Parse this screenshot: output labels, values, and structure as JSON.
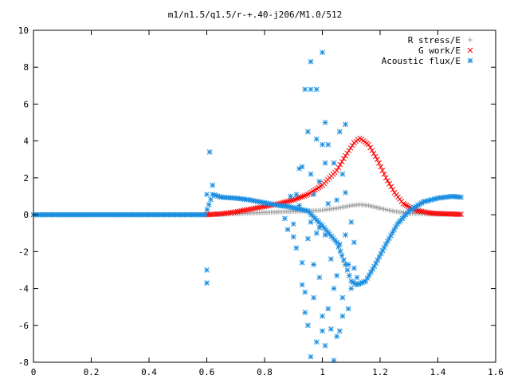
{
  "chart_data": {
    "type": "scatter",
    "title": "m1/n1.5/q1.5/r-+.40-j206/M1.0/512",
    "xlabel": "",
    "ylabel": "",
    "xlim": [
      0,
      1.6
    ],
    "ylim": [
      -8,
      10
    ],
    "x_ticks": [
      "0",
      "0.2",
      "0.4",
      "0.6",
      "0.8",
      "1",
      "1.2",
      "1.4",
      "1.6"
    ],
    "y_ticks": [
      "-8",
      "-6",
      "-4",
      "-2",
      "0",
      "2",
      "4",
      "6",
      "8",
      "10"
    ],
    "legend_position": "top-right",
    "grid": false,
    "series": [
      {
        "name": "R stress/E",
        "marker": "+",
        "color": "#a0a0a0",
        "sampling": "dense",
        "points": [
          [
            0.6,
            0
          ],
          [
            0.7,
            0.05
          ],
          [
            0.8,
            0.12
          ],
          [
            0.9,
            0.18
          ],
          [
            0.95,
            0.2
          ],
          [
            1.0,
            0.25
          ],
          [
            1.05,
            0.35
          ],
          [
            1.1,
            0.5
          ],
          [
            1.13,
            0.55
          ],
          [
            1.16,
            0.5
          ],
          [
            1.2,
            0.35
          ],
          [
            1.25,
            0.18
          ],
          [
            1.3,
            0.08
          ],
          [
            1.4,
            0.02
          ],
          [
            1.48,
            0
          ]
        ]
      },
      {
        "name": "G work/E",
        "marker": "x",
        "color": "#ff0000",
        "sampling": "dense",
        "points": [
          [
            0.6,
            0
          ],
          [
            0.65,
            0.05
          ],
          [
            0.7,
            0.15
          ],
          [
            0.75,
            0.3
          ],
          [
            0.8,
            0.45
          ],
          [
            0.85,
            0.6
          ],
          [
            0.9,
            0.8
          ],
          [
            0.95,
            1.1
          ],
          [
            1.0,
            1.6
          ],
          [
            1.05,
            2.4
          ],
          [
            1.08,
            3.2
          ],
          [
            1.11,
            3.9
          ],
          [
            1.13,
            4.15
          ],
          [
            1.16,
            3.8
          ],
          [
            1.19,
            3.0
          ],
          [
            1.22,
            2.0
          ],
          [
            1.25,
            1.2
          ],
          [
            1.28,
            0.6
          ],
          [
            1.32,
            0.25
          ],
          [
            1.38,
            0.08
          ],
          [
            1.48,
            0.02
          ]
        ]
      },
      {
        "name": "Acoustic flux/E",
        "marker": "*",
        "color": "#1b8ee0",
        "sampling": "dense",
        "points": [
          [
            0,
            0
          ],
          [
            0.2,
            0
          ],
          [
            0.4,
            0
          ],
          [
            0.595,
            0
          ],
          [
            0.62,
            1.1
          ],
          [
            0.65,
            0.95
          ],
          [
            0.7,
            0.9
          ],
          [
            0.75,
            0.8
          ],
          [
            0.8,
            0.65
          ],
          [
            0.85,
            0.5
          ],
          [
            0.88,
            0.45
          ],
          [
            0.95,
            0.2
          ],
          [
            1.0,
            -0.6
          ],
          [
            1.05,
            -1.5
          ],
          [
            1.08,
            -2.7
          ],
          [
            1.1,
            -3.6
          ],
          [
            1.12,
            -3.8
          ],
          [
            1.15,
            -3.6
          ],
          [
            1.18,
            -2.8
          ],
          [
            1.22,
            -1.6
          ],
          [
            1.26,
            -0.5
          ],
          [
            1.3,
            0.2
          ],
          [
            1.35,
            0.7
          ],
          [
            1.4,
            0.9
          ],
          [
            1.45,
            1.0
          ],
          [
            1.48,
            0.95
          ]
        ]
      },
      {
        "name": "",
        "marker": "*",
        "color": "#1b8ee0",
        "sampling": "scattered",
        "points": [
          [
            0.6,
            1.1
          ],
          [
            0.6,
            -3.0
          ],
          [
            0.6,
            -3.7
          ],
          [
            0.61,
            3.4
          ],
          [
            0.62,
            1.6
          ],
          [
            0.87,
            -0.2
          ],
          [
            0.88,
            -0.8
          ],
          [
            0.89,
            1.0
          ],
          [
            0.9,
            -0.5
          ],
          [
            0.9,
            -1.2
          ],
          [
            0.91,
            1.1
          ],
          [
            0.91,
            -1.8
          ],
          [
            0.92,
            2.5
          ],
          [
            0.92,
            0.5
          ],
          [
            0.93,
            2.6
          ],
          [
            0.93,
            -2.6
          ],
          [
            0.93,
            -3.8
          ],
          [
            0.94,
            6.8
          ],
          [
            0.94,
            -4.2
          ],
          [
            0.94,
            -5.3
          ],
          [
            0.95,
            4.5
          ],
          [
            0.95,
            -1.3
          ],
          [
            0.95,
            -6.0
          ],
          [
            0.96,
            8.3
          ],
          [
            0.96,
            6.8
          ],
          [
            0.96,
            2.2
          ],
          [
            0.96,
            -0.4
          ],
          [
            0.96,
            -7.7
          ],
          [
            0.97,
            1.1
          ],
          [
            0.97,
            -2.7
          ],
          [
            0.97,
            -4.5
          ],
          [
            0.98,
            6.8
          ],
          [
            0.98,
            4.1
          ],
          [
            0.98,
            -1.0
          ],
          [
            0.98,
            -6.9
          ],
          [
            0.99,
            1.8
          ],
          [
            0.99,
            -0.7
          ],
          [
            0.99,
            -3.4
          ],
          [
            1.0,
            8.8
          ],
          [
            1.0,
            3.8
          ],
          [
            1.0,
            -5.5
          ],
          [
            1.0,
            -6.3
          ],
          [
            1.01,
            5.0
          ],
          [
            1.01,
            2.8
          ],
          [
            1.01,
            -1.1
          ],
          [
            1.01,
            -7.1
          ],
          [
            1.02,
            3.8
          ],
          [
            1.02,
            0.6
          ],
          [
            1.02,
            -5.1
          ],
          [
            1.03,
            -2.4
          ],
          [
            1.03,
            -6.2
          ],
          [
            1.04,
            2.8
          ],
          [
            1.04,
            -4.0
          ],
          [
            1.04,
            -7.9
          ],
          [
            1.05,
            0.8
          ],
          [
            1.05,
            -3.3
          ],
          [
            1.05,
            -6.6
          ],
          [
            1.06,
            4.5
          ],
          [
            1.06,
            -1.6
          ],
          [
            1.06,
            -6.3
          ],
          [
            1.07,
            2.2
          ],
          [
            1.07,
            -4.5
          ],
          [
            1.07,
            -5.5
          ],
          [
            1.08,
            4.9
          ],
          [
            1.08,
            1.2
          ],
          [
            1.08,
            -1.1
          ],
          [
            1.09,
            -2.7
          ],
          [
            1.09,
            -5.1
          ],
          [
            1.1,
            -0.4
          ],
          [
            1.1,
            -4.0
          ],
          [
            1.11,
            -1.5
          ],
          [
            1.11,
            -2.9
          ],
          [
            1.12,
            -3.4
          ]
        ]
      }
    ]
  }
}
